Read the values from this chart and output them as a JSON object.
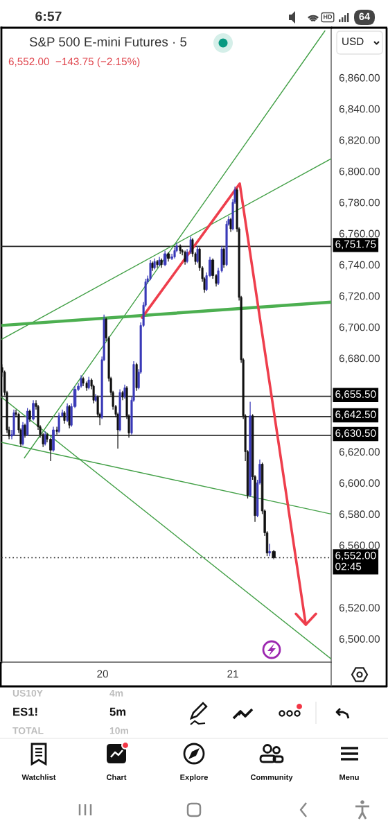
{
  "chart_data": {
    "type": "candlestick",
    "title": "S&P 500 E-mini Futures · 5",
    "subtitle": "6,552.00  −143.75 (−2.15%)",
    "x": [
      19.227,
      19.248,
      19.266,
      19.282,
      19.303,
      19.319,
      19.335,
      19.356,
      19.372,
      19.388,
      19.404,
      19.423,
      19.441,
      19.468,
      19.489,
      19.505,
      19.521,
      19.543,
      19.559,
      19.574,
      19.601,
      19.622,
      19.649,
      19.665,
      19.691,
      19.707,
      19.729,
      19.745,
      19.761,
      19.787,
      19.814,
      19.835,
      19.851,
      19.878,
      19.894,
      19.915,
      19.931,
      19.947,
      19.963,
      19.979,
      19.995,
      20.011,
      20.027,
      20.048,
      20.064,
      20.08,
      20.101,
      20.117,
      20.133,
      20.154,
      20.17,
      20.186,
      20.202,
      20.223,
      20.239,
      20.261,
      20.277,
      20.293,
      20.314,
      20.33,
      20.346,
      20.367,
      20.383,
      20.399,
      20.42,
      20.436,
      20.452,
      20.479,
      20.505,
      20.532,
      20.553,
      20.569,
      20.596,
      20.612,
      20.633,
      20.649,
      20.676,
      20.691,
      20.713,
      20.729,
      20.745,
      20.766,
      20.782,
      20.798,
      20.824,
      20.846,
      20.872,
      20.888,
      20.915,
      20.931,
      20.952,
      20.968,
      20.984,
      21.0,
      21.016,
      21.032,
      21.048,
      21.064,
      21.08,
      21.096,
      21.114,
      21.133,
      21.152,
      21.17,
      21.189,
      21.207,
      21.226,
      21.245,
      21.263,
      21.282,
      21.314
    ],
    "ohlc": [
      [
        6674,
        6676,
        6668,
        6671
      ],
      [
        6671,
        6672,
        6656,
        6658
      ],
      [
        6658,
        6659,
        6632,
        6634
      ],
      [
        6634,
        6636,
        6628,
        6630
      ],
      [
        6630,
        6634,
        6628,
        6631
      ],
      [
        6631,
        6647,
        6630,
        6645
      ],
      [
        6645,
        6647,
        6642,
        6644
      ],
      [
        6644,
        6645,
        6632,
        6634
      ],
      [
        6634,
        6635,
        6623,
        6625
      ],
      [
        6625,
        6639,
        6624,
        6637
      ],
      [
        6637,
        6638,
        6629,
        6631
      ],
      [
        6631,
        6648,
        6630,
        6646
      ],
      [
        6646,
        6647,
        6639,
        6641
      ],
      [
        6641,
        6653,
        6640,
        6651
      ],
      [
        6651,
        6653,
        6647,
        6649
      ],
      [
        6649,
        6650,
        6634,
        6636
      ],
      [
        6636,
        6637,
        6629,
        6631
      ],
      [
        6631,
        6632,
        6623,
        6625
      ],
      [
        6625,
        6633,
        6624,
        6631
      ],
      [
        6631,
        6632,
        6626,
        6628
      ],
      [
        6628,
        6629,
        6614,
        6621
      ],
      [
        6621,
        6636,
        6620,
        6634
      ],
      [
        6634,
        6636,
        6631,
        6633
      ],
      [
        6633,
        6645,
        6632,
        6643
      ],
      [
        6643,
        6647,
        6642,
        6645
      ],
      [
        6645,
        6646,
        6638,
        6640
      ],
      [
        6640,
        6651,
        6639,
        6649
      ],
      [
        6649,
        6650,
        6635,
        6637
      ],
      [
        6637,
        6651,
        6636,
        6649
      ],
      [
        6649,
        6662,
        6648,
        6660
      ],
      [
        6660,
        6664,
        6659,
        6662
      ],
      [
        6662,
        6669,
        6661,
        6667
      ],
      [
        6667,
        6668,
        6662,
        6664
      ],
      [
        6664,
        6665,
        6659,
        6661
      ],
      [
        6661,
        6668,
        6660,
        6666
      ],
      [
        6666,
        6667,
        6660,
        6662
      ],
      [
        6662,
        6663,
        6651,
        6653
      ],
      [
        6653,
        6657,
        6652,
        6655
      ],
      [
        6655,
        6656,
        6642,
        6644
      ],
      [
        6644,
        6645,
        6637,
        6642
      ],
      [
        6642,
        6681,
        6641,
        6679
      ],
      [
        6679,
        6708,
        6678,
        6705
      ],
      [
        6705,
        6706,
        6691,
        6693
      ],
      [
        6693,
        6694,
        6665,
        6667
      ],
      [
        6667,
        6668,
        6656,
        6658
      ],
      [
        6658,
        6659,
        6647,
        6649
      ],
      [
        6649,
        6650,
        6642,
        6644
      ],
      [
        6644,
        6645,
        6622,
        6634
      ],
      [
        6634,
        6660,
        6633,
        6658
      ],
      [
        6658,
        6659,
        6653,
        6655
      ],
      [
        6655,
        6663,
        6654,
        6661
      ],
      [
        6661,
        6662,
        6641,
        6643
      ],
      [
        6643,
        6644,
        6629,
        6632
      ],
      [
        6632,
        6655,
        6631,
        6653
      ],
      [
        6653,
        6678,
        6652,
        6676
      ],
      [
        6676,
        6677,
        6659,
        6661
      ],
      [
        6661,
        6673,
        6660,
        6671
      ],
      [
        6671,
        6703,
        6670,
        6701
      ],
      [
        6701,
        6716,
        6700,
        6714
      ],
      [
        6714,
        6731,
        6713,
        6729
      ],
      [
        6729,
        6733,
        6728,
        6731
      ],
      [
        6731,
        6743,
        6730,
        6741
      ],
      [
        6741,
        6742,
        6736,
        6738
      ],
      [
        6738,
        6744,
        6737,
        6742
      ],
      [
        6742,
        6743,
        6738,
        6740
      ],
      [
        6740,
        6745,
        6739,
        6743
      ],
      [
        6743,
        6744,
        6738,
        6740
      ],
      [
        6740,
        6749,
        6739,
        6747
      ],
      [
        6747,
        6748,
        6742,
        6744
      ],
      [
        6744,
        6747,
        6743,
        6745
      ],
      [
        6745,
        6751,
        6744,
        6749
      ],
      [
        6749,
        6754,
        6748,
        6752
      ],
      [
        6752,
        6753,
        6747,
        6749
      ],
      [
        6749,
        6750,
        6746,
        6748
      ],
      [
        6748,
        6749,
        6740,
        6742
      ],
      [
        6742,
        6750,
        6741,
        6748
      ],
      [
        6748,
        6758,
        6747,
        6756
      ],
      [
        6756,
        6757,
        6745,
        6747
      ],
      [
        6747,
        6748,
        6740,
        6742
      ],
      [
        6742,
        6752,
        6741,
        6750
      ],
      [
        6750,
        6751,
        6736,
        6738
      ],
      [
        6738,
        6739,
        6729,
        6731
      ],
      [
        6731,
        6732,
        6722,
        6724
      ],
      [
        6724,
        6735,
        6723,
        6733
      ],
      [
        6733,
        6745,
        6732,
        6743
      ],
      [
        6743,
        6744,
        6731,
        6733
      ],
      [
        6733,
        6734,
        6726,
        6728
      ],
      [
        6728,
        6738,
        6727,
        6736
      ],
      [
        6736,
        6752,
        6735,
        6750
      ],
      [
        6750,
        6751,
        6738,
        6740
      ],
      [
        6740,
        6768,
        6739,
        6766
      ],
      [
        6766,
        6771,
        6765,
        6769
      ],
      [
        6769,
        6770,
        6761,
        6763
      ],
      [
        6763,
        6782,
        6762,
        6780
      ],
      [
        6780,
        6790,
        6779,
        6788
      ],
      [
        6788,
        6789,
        6761,
        6763
      ],
      [
        6763,
        6764,
        6717,
        6719
      ],
      [
        6719,
        6720,
        6677,
        6679
      ],
      [
        6679,
        6680,
        6641,
        6643
      ],
      [
        6643,
        6644,
        6614,
        6620
      ],
      [
        6620,
        6621,
        6590,
        6592
      ],
      [
        6592,
        6652,
        6591,
        6643
      ],
      [
        6643,
        6644,
        6602,
        6604
      ],
      [
        6604,
        6605,
        6575,
        6579
      ],
      [
        6579,
        6602,
        6578,
        6600
      ],
      [
        6600,
        6615,
        6599,
        6612
      ],
      [
        6612,
        6613,
        6580,
        6582
      ],
      [
        6582,
        6583,
        6566,
        6568
      ],
      [
        6568,
        6569,
        6553,
        6555
      ],
      [
        6555,
        6561,
        6553,
        6556
      ],
      [
        6556,
        6557,
        6551,
        6552
      ]
    ],
    "colors": [
      "#111111",
      "#111111",
      "#111111",
      "#111111",
      "#3a3ab8",
      "#3a3ab8",
      "#111111",
      "#111111",
      "#111111",
      "#3a3ab8",
      "#111111",
      "#3a3ab8",
      "#111111",
      "#3a3ab8",
      "#111111",
      "#111111",
      "#111111",
      "#111111",
      "#3a3ab8",
      "#111111",
      "#111111",
      "#3a3ab8",
      "#111111",
      "#3a3ab8",
      "#3a3ab8",
      "#111111",
      "#3a3ab8",
      "#111111",
      "#3a3ab8",
      "#3a3ab8",
      "#3a3ab8",
      "#3a3ab8",
      "#111111",
      "#111111",
      "#3a3ab8",
      "#111111",
      "#111111",
      "#3a3ab8",
      "#111111",
      "#111111",
      "#3a3ab8",
      "#3a3ab8",
      "#111111",
      "#111111",
      "#111111",
      "#111111",
      "#111111",
      "#111111",
      "#3a3ab8",
      "#111111",
      "#3a3ab8",
      "#111111",
      "#111111",
      "#3a3ab8",
      "#3a3ab8",
      "#111111",
      "#3a3ab8",
      "#3a3ab8",
      "#3a3ab8",
      "#3a3ab8",
      "#3a3ab8",
      "#3a3ab8",
      "#111111",
      "#3a3ab8",
      "#111111",
      "#3a3ab8",
      "#111111",
      "#3a3ab8",
      "#111111",
      "#3a3ab8",
      "#3a3ab8",
      "#3a3ab8",
      "#111111",
      "#111111",
      "#111111",
      "#3a3ab8",
      "#3a3ab8",
      "#111111",
      "#111111",
      "#3a3ab8",
      "#111111",
      "#111111",
      "#111111",
      "#3a3ab8",
      "#3a3ab8",
      "#111111",
      "#111111",
      "#3a3ab8",
      "#3a3ab8",
      "#111111",
      "#3a3ab8",
      "#3a3ab8",
      "#111111",
      "#3a3ab8",
      "#3a3ab8",
      "#111111",
      "#111111",
      "#111111",
      "#111111",
      "#111111",
      "#111111",
      "#3a3ab8",
      "#111111",
      "#111111",
      "#3a3ab8",
      "#3a3ab8",
      "#111111",
      "#111111",
      "#111111",
      "#3a3ab8",
      "#111111"
    ],
    "series": [
      {
        "type": "line",
        "x": [
          19.399,
          21.707
        ],
        "values": [
          6616,
          6890
        ],
        "color": "#43a047"
      },
      {
        "type": "line",
        "x": [
          19.223,
          21.755
        ],
        "values": [
          6692,
          6808
        ],
        "color": "#43a047"
      },
      {
        "type": "line",
        "x": [
          19.223,
          21.755
        ],
        "values": [
          6701,
          6716
        ],
        "color": "#4caf50"
      },
      {
        "type": "line",
        "x": [
          19.223,
          21.755
        ],
        "values": [
          6626,
          6580
        ],
        "color": "#43a047"
      },
      {
        "type": "line",
        "x": [
          19.223,
          21.755
        ],
        "values": [
          6655,
          6487
        ],
        "color": "#43a047"
      },
      {
        "type": "line",
        "x": [
          20.303,
          21.053,
          21.56,
          21.484,
          21.56,
          21.638
        ],
        "values": [
          6706,
          6792,
          6509,
          6516,
          6509,
          6516
        ],
        "color": "#ee3e4c"
      }
    ],
    "ref_lines": [
      {
        "axis": "y",
        "value": 6751.75,
        "label": "6,751.75",
        "color": "#2b2b2b"
      },
      {
        "axis": "y",
        "value": 6655.5,
        "label": "6,655.50",
        "color": "#2b2b2b"
      },
      {
        "axis": "y",
        "value": 6642.5,
        "label": "6,642.50",
        "color": "#2b2b2b"
      },
      {
        "axis": "y",
        "value": 6630.5,
        "label": "6,630.50",
        "color": "#2b2b2b"
      },
      {
        "axis": "y",
        "value": 6552,
        "label": "6,552.00\n02:45",
        "color": "#2b2b2b",
        "line_style": "dotted"
      }
    ],
    "xlim": [
      19.223,
      21.755
    ],
    "xticks": [
      20,
      21
    ],
    "ylim": [
      6485,
      6892
    ],
    "yticks": [
      {
        "value": 6500,
        "label": "6,500.00"
      },
      {
        "value": 6520,
        "label": "6,520.00"
      },
      {
        "value": 6560,
        "label": "6,560.00"
      },
      {
        "value": 6580,
        "label": "6,580.00"
      },
      {
        "value": 6600,
        "label": "6,600.00"
      },
      {
        "value": 6620,
        "label": "6,620.00"
      },
      {
        "value": 6680,
        "label": "6,680.00"
      },
      {
        "value": 6700,
        "label": "6,700.00"
      },
      {
        "value": 6720,
        "label": "6,720.00"
      },
      {
        "value": 6740,
        "label": "6,740.00"
      },
      {
        "value": 6760,
        "label": "6,760.00"
      },
      {
        "value": 6780,
        "label": "6,780.00"
      },
      {
        "value": 6800,
        "label": "6,800.00"
      },
      {
        "value": 6820,
        "label": "6,820.00"
      },
      {
        "value": 6840,
        "label": "6,840.00"
      },
      {
        "value": 6860,
        "label": "6,860.00"
      }
    ],
    "annotations": [
      "6:57",
      "64",
      "HD",
      "USD",
      "US10Y",
      "4m",
      "ES1!",
      "5m",
      "TOTAL",
      "10m",
      "Watchlist",
      "Chart",
      "Explore",
      "Community",
      "Menu"
    ]
  }
}
